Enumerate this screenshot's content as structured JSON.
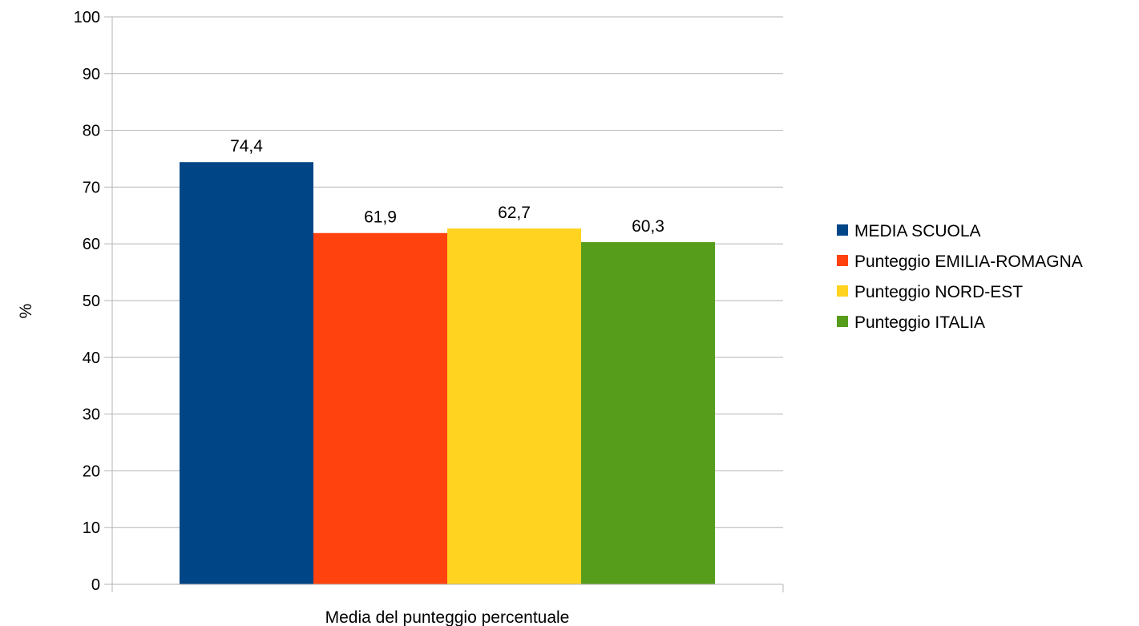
{
  "chart_data": {
    "type": "bar",
    "categories": [
      "Media del punteggio percentuale"
    ],
    "series": [
      {
        "name": "MEDIA SCUOLA",
        "values": [
          74.4
        ],
        "label": "74,4",
        "color": "#004586"
      },
      {
        "name": "Punteggio EMILIA-ROMAGNA",
        "values": [
          61.9
        ],
        "label": "61,9",
        "color": "#ff420e"
      },
      {
        "name": "Punteggio NORD-EST",
        "values": [
          62.7
        ],
        "label": "62,7",
        "color": "#ffd320"
      },
      {
        "name": "Punteggio ITALIA",
        "values": [
          60.3
        ],
        "label": "60,3",
        "color": "#579d1c"
      }
    ],
    "title": "",
    "xlabel": "Media del punteggio percentuale",
    "ylabel": "%",
    "ylim": [
      0,
      100
    ],
    "yticks": [
      0,
      10,
      20,
      30,
      40,
      50,
      60,
      70,
      80,
      90,
      100
    ],
    "grid": true,
    "legend_position": "right"
  }
}
